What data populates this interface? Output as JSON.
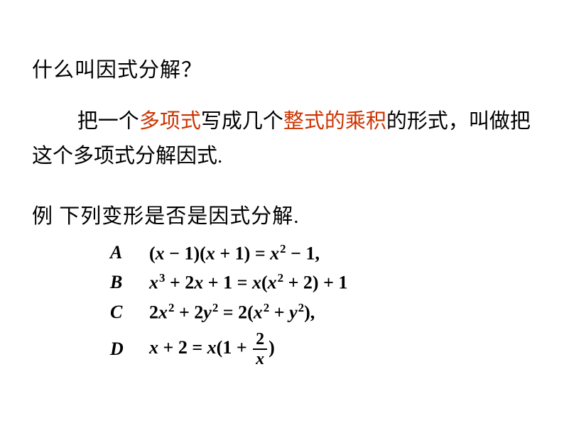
{
  "colors": {
    "highlight": "#cc3300",
    "text": "#000000",
    "background": "#ffffff"
  },
  "fonts": {
    "chinese": "KaiTi",
    "math": "Times New Roman italic bold",
    "size_body": 29,
    "size_math": 26
  },
  "question": "什么叫因式分解？",
  "definition": {
    "pre": "把一个",
    "hl1": "多项式",
    "mid1": "写成几个",
    "hl2": "整式的乘积",
    "mid2": "的形式，叫做把这个多项式分解因式."
  },
  "example_head": "例  下列变形是否是因式分解.",
  "options": {
    "A": {
      "label": "A",
      "expr": "(x − 1)(x + 1) = x² − 1,"
    },
    "B": {
      "label": "B",
      "expr": "x³ + 2x + 1 = x(x² + 2) + 1"
    },
    "C": {
      "label": "C",
      "expr": "2x² + 2y² = 2(x² + y²),"
    },
    "D": {
      "label": "D",
      "expr": "x + 2 = x(1 + 2/x)"
    }
  }
}
